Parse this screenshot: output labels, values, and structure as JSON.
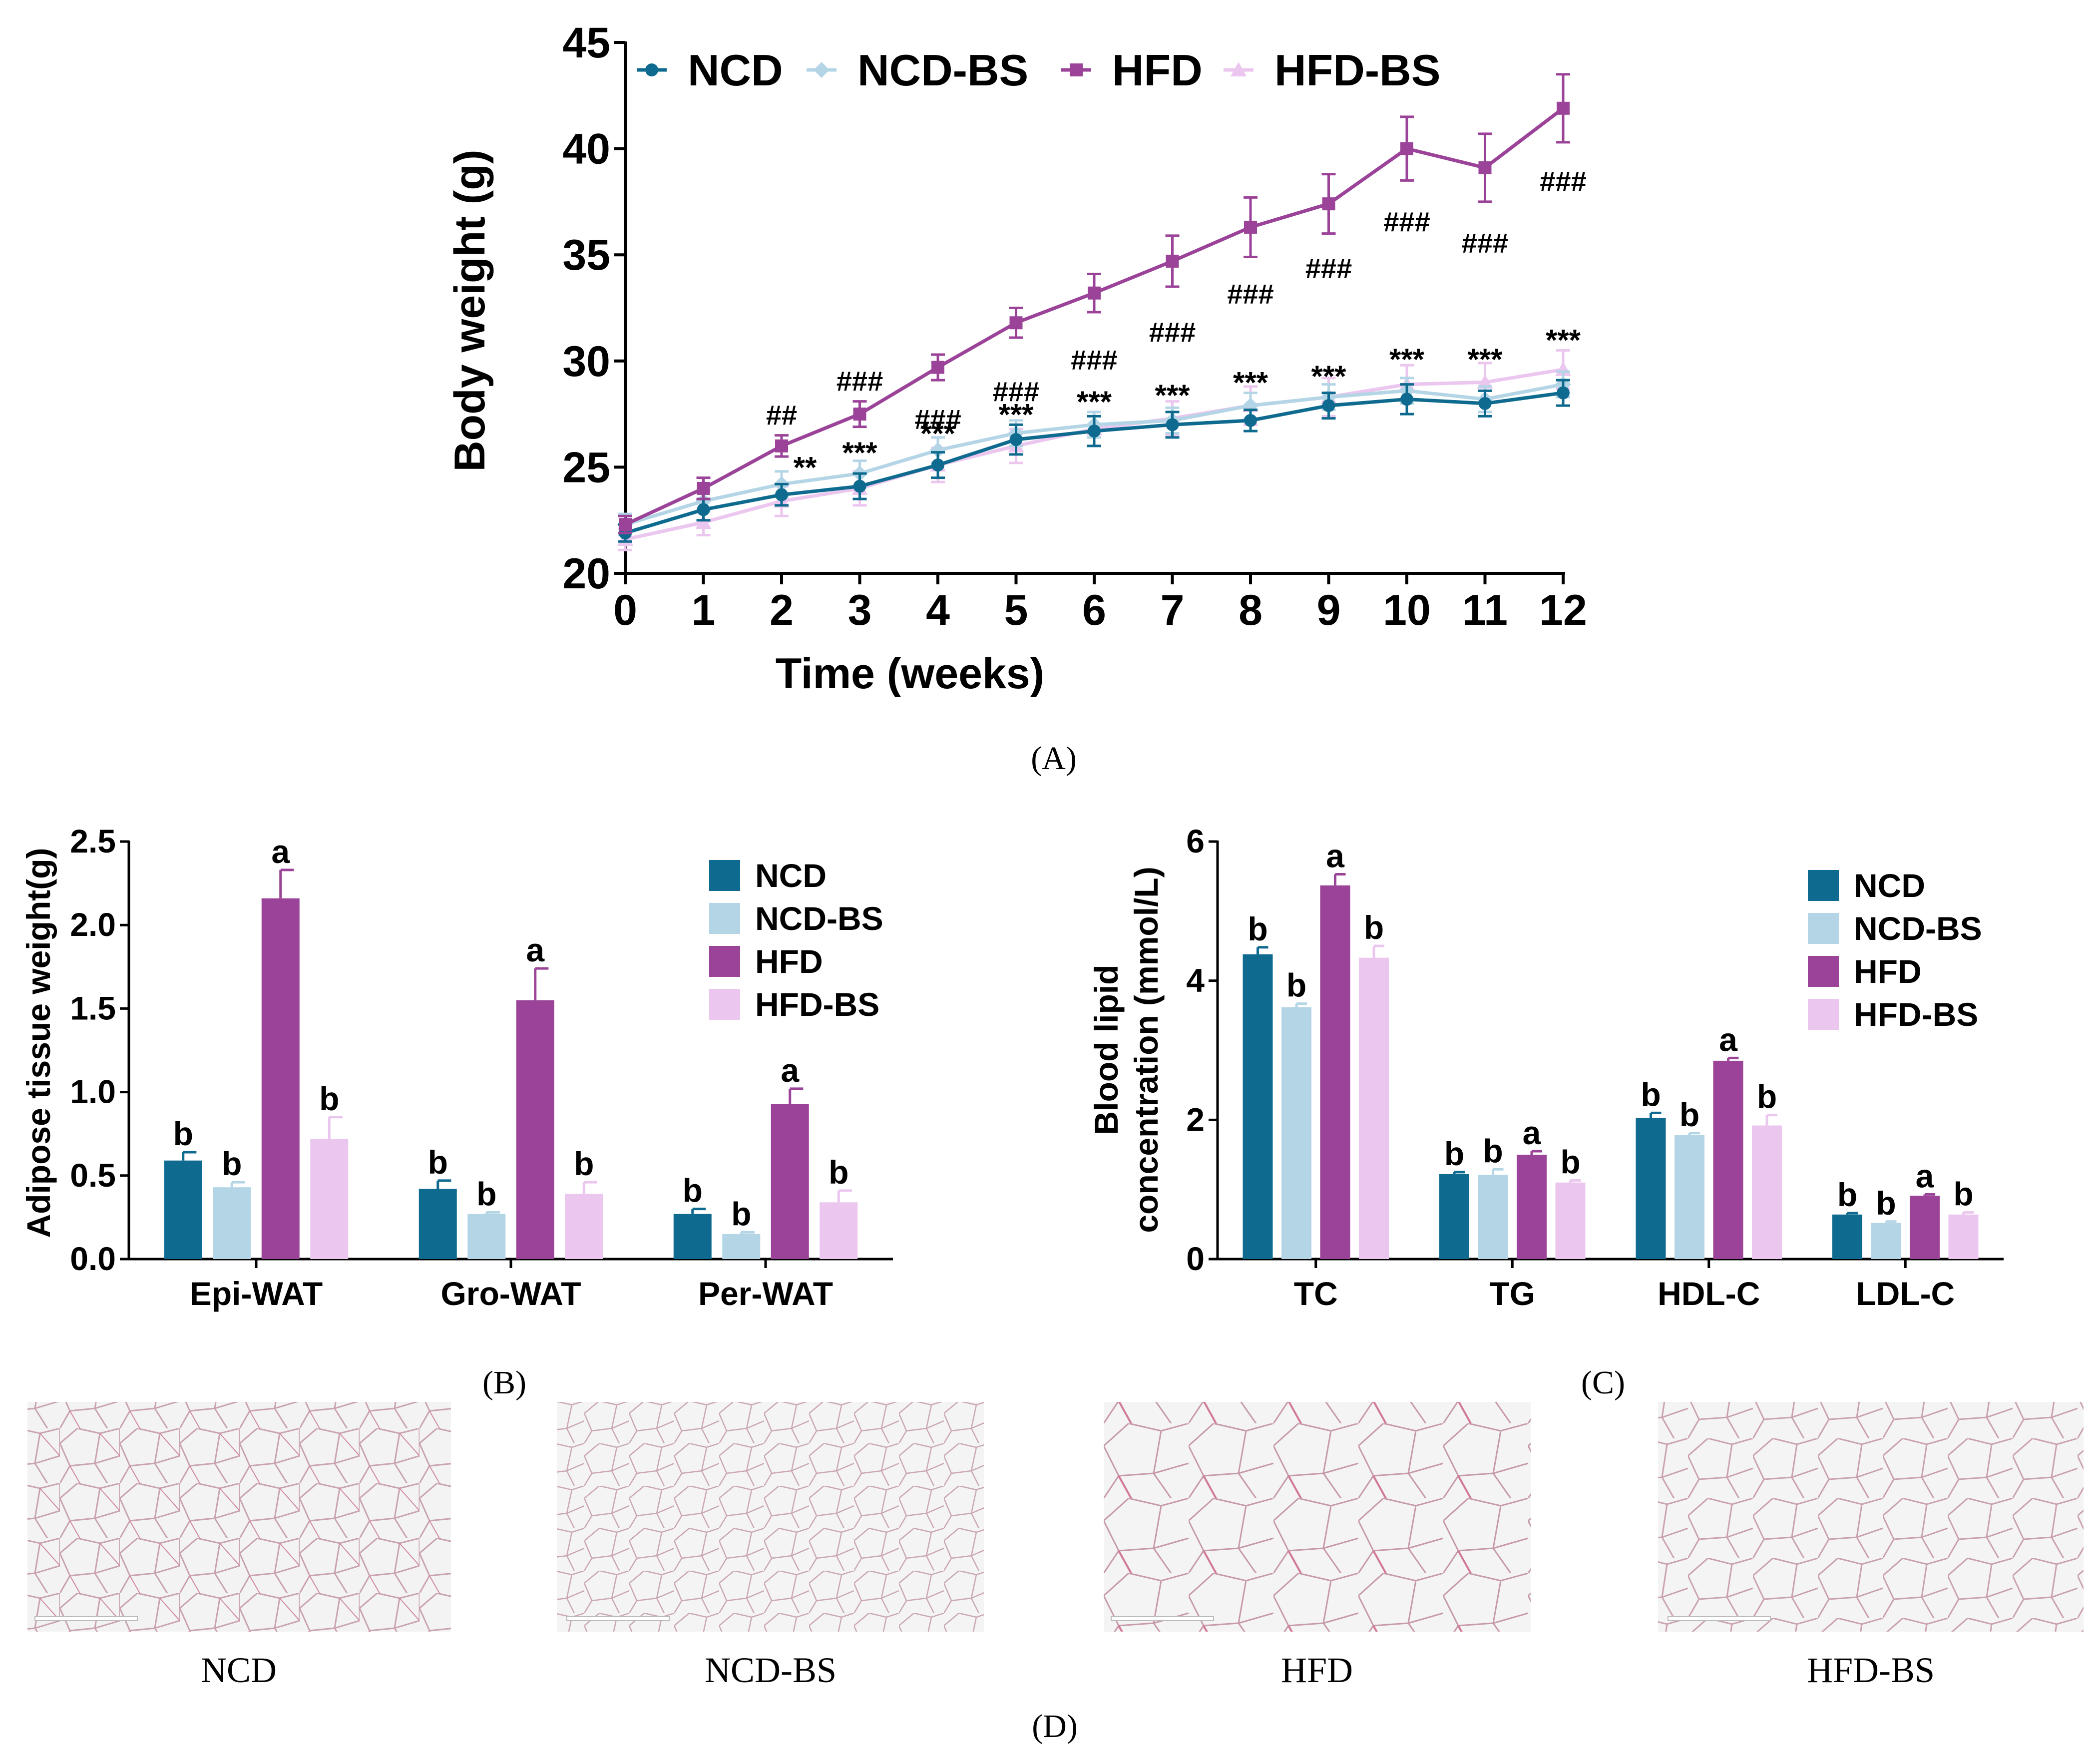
{
  "colors": {
    "ncd": "#0e6a8e",
    "ncd_bs": "#b4d5e6",
    "hfd": "#9b4398",
    "hfd_bs": "#ebc6ef"
  },
  "chart_data": [
    {
      "id": "A",
      "type": "line",
      "xlabel": "Time (weeks)",
      "ylabel": "Body weight (g)",
      "x": [
        0,
        1,
        2,
        3,
        4,
        5,
        6,
        7,
        8,
        9,
        10,
        11,
        12
      ],
      "ylim": [
        20,
        45
      ],
      "yticks": [
        20,
        25,
        30,
        35,
        40,
        45
      ],
      "series": [
        {
          "name": "NCD",
          "key": "ncd",
          "marker": "circle",
          "values": [
            21.9,
            23.0,
            23.7,
            24.1,
            25.1,
            26.3,
            26.7,
            27.0,
            27.2,
            27.9,
            28.2,
            28.0,
            28.5
          ],
          "errors": [
            0.4,
            0.5,
            0.5,
            0.6,
            0.6,
            0.7,
            0.7,
            0.6,
            0.5,
            0.6,
            0.7,
            0.6,
            0.6
          ]
        },
        {
          "name": "NCD-BS",
          "key": "ncd_bs",
          "marker": "diamond",
          "values": [
            22.3,
            23.4,
            24.2,
            24.7,
            25.8,
            26.6,
            27.0,
            27.2,
            27.9,
            28.3,
            28.6,
            28.2,
            28.9
          ],
          "errors": [
            0.5,
            0.5,
            0.6,
            0.6,
            0.6,
            0.6,
            0.6,
            0.6,
            0.6,
            0.6,
            0.6,
            0.6,
            0.6
          ]
        },
        {
          "name": "HFD",
          "key": "hfd",
          "marker": "square",
          "values": [
            22.3,
            24.0,
            26.0,
            27.5,
            29.7,
            31.8,
            33.2,
            34.7,
            36.3,
            37.4,
            40.0,
            39.1,
            41.9
          ],
          "errors": [
            0.4,
            0.5,
            0.5,
            0.6,
            0.6,
            0.7,
            0.9,
            1.2,
            1.4,
            1.4,
            1.5,
            1.6,
            1.6
          ]
        },
        {
          "name": "HFD-BS",
          "key": "hfd_bs",
          "marker": "triangle",
          "values": [
            21.6,
            22.4,
            23.4,
            24.0,
            25.1,
            26.0,
            26.8,
            27.3,
            27.9,
            28.3,
            28.9,
            29.0,
            29.6
          ],
          "errors": [
            0.5,
            0.6,
            0.7,
            0.8,
            0.8,
            0.8,
            0.8,
            0.8,
            0.9,
            0.9,
            0.9,
            0.9,
            0.9
          ]
        }
      ],
      "annotations_hash": [
        {
          "x": 2,
          "y": 27.0,
          "text": "##"
        },
        {
          "x": 3,
          "y": 28.6,
          "text": "###"
        },
        {
          "x": 4,
          "y": 26.8,
          "text": "###"
        },
        {
          "x": 5,
          "y": 28.1,
          "text": "###"
        },
        {
          "x": 6,
          "y": 29.6,
          "text": "###"
        },
        {
          "x": 7,
          "y": 30.9,
          "text": "###"
        },
        {
          "x": 8,
          "y": 32.7,
          "text": "###"
        },
        {
          "x": 9,
          "y": 33.9,
          "text": "###"
        },
        {
          "x": 10,
          "y": 36.1,
          "text": "###"
        },
        {
          "x": 11,
          "y": 35.1,
          "text": "###"
        },
        {
          "x": 12,
          "y": 38.0,
          "text": "###"
        }
      ],
      "annotations_star": [
        {
          "x": 2.3,
          "y": 24.5,
          "text": "**"
        },
        {
          "x": 3,
          "y": 25.2,
          "text": "***"
        },
        {
          "x": 4,
          "y": 26.1,
          "text": "***"
        },
        {
          "x": 5,
          "y": 27.0,
          "text": "***"
        },
        {
          "x": 6,
          "y": 27.6,
          "text": "***"
        },
        {
          "x": 7,
          "y": 27.9,
          "text": "***"
        },
        {
          "x": 8,
          "y": 28.5,
          "text": "***"
        },
        {
          "x": 9,
          "y": 28.8,
          "text": "***"
        },
        {
          "x": 10,
          "y": 29.6,
          "text": "***"
        },
        {
          "x": 11,
          "y": 29.6,
          "text": "***"
        },
        {
          "x": 12,
          "y": 30.5,
          "text": "***"
        }
      ],
      "caption": "(A)"
    },
    {
      "id": "B",
      "type": "bar",
      "ylabel": "Adipose tissue weight(g)",
      "categories": [
        "Epi-WAT",
        "Gro-WAT",
        "Per-WAT"
      ],
      "ylim": [
        0,
        2.5
      ],
      "yticks": [
        "0.0",
        "0.5",
        "1.0",
        "1.5",
        "2.0",
        "2.5"
      ],
      "series": [
        {
          "name": "NCD",
          "key": "ncd",
          "values": [
            0.59,
            0.42,
            0.27
          ],
          "errors": [
            0.05,
            0.05,
            0.03
          ],
          "letters": [
            "b",
            "b",
            "b"
          ]
        },
        {
          "name": "NCD-BS",
          "key": "ncd_bs",
          "values": [
            0.43,
            0.27,
            0.15
          ],
          "errors": [
            0.03,
            0.01,
            0.01
          ],
          "letters": [
            "b",
            "b",
            "b"
          ]
        },
        {
          "name": "HFD",
          "key": "hfd",
          "values": [
            2.16,
            1.55,
            0.93
          ],
          "errors": [
            0.17,
            0.19,
            0.09
          ],
          "letters": [
            "a",
            "a",
            "a"
          ]
        },
        {
          "name": "HFD-BS",
          "key": "hfd_bs",
          "values": [
            0.72,
            0.39,
            0.34
          ],
          "errors": [
            0.13,
            0.07,
            0.07
          ],
          "letters": [
            "b",
            "b",
            "b"
          ]
        }
      ],
      "caption": "(B)"
    },
    {
      "id": "C",
      "type": "bar",
      "ylabel_line1": "Blood lipid",
      "ylabel_line2": "concentration (mmol/L)",
      "categories": [
        "TC",
        "TG",
        "HDL-C",
        "LDL-C"
      ],
      "ylim": [
        0,
        6
      ],
      "yticks": [
        "0",
        "2",
        "4",
        "6"
      ],
      "series": [
        {
          "name": "NCD",
          "key": "ncd",
          "values": [
            4.38,
            1.22,
            2.03,
            0.64
          ],
          "errors": [
            0.1,
            0.03,
            0.07,
            0.02
          ],
          "letters": [
            "b",
            "b",
            "b",
            "b"
          ]
        },
        {
          "name": "NCD-BS",
          "key": "ncd_bs",
          "values": [
            3.62,
            1.21,
            1.78,
            0.52
          ],
          "errors": [
            0.05,
            0.08,
            0.03,
            0.02
          ],
          "letters": [
            "b",
            "b",
            "b",
            "b"
          ]
        },
        {
          "name": "HFD",
          "key": "hfd",
          "values": [
            5.37,
            1.5,
            2.85,
            0.91
          ],
          "errors": [
            0.16,
            0.05,
            0.04,
            0.02
          ],
          "letters": [
            "a",
            "a",
            "a",
            "a"
          ]
        },
        {
          "name": "HFD-BS",
          "key": "hfd_bs",
          "values": [
            4.33,
            1.1,
            1.92,
            0.64
          ],
          "errors": [
            0.17,
            0.03,
            0.15,
            0.03
          ],
          "letters": [
            "b",
            "b",
            "b",
            "b"
          ]
        }
      ],
      "caption": "(C)"
    }
  ],
  "panel_d": {
    "labels": [
      "NCD",
      "NCD-BS",
      "HFD",
      "HFD-BS"
    ],
    "caption": "(D)"
  }
}
